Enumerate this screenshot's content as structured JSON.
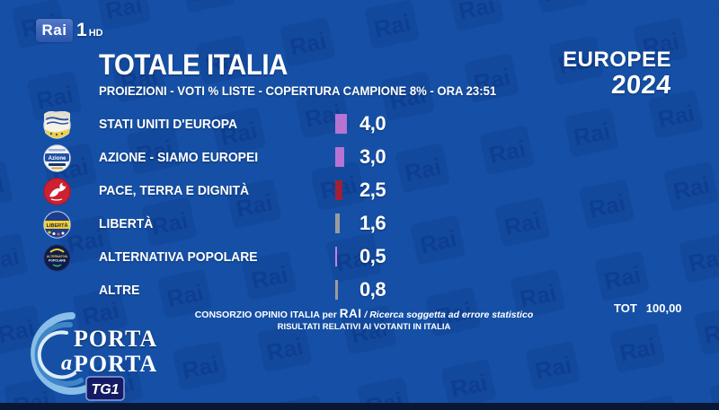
{
  "channel": {
    "rai": "Rai",
    "number": "1",
    "hd": "HD"
  },
  "header": {
    "title": "TOTALE ITALIA",
    "subtitle": "PROIEZIONI - VOTI % LISTE - COPERTURA CAMPIONE 8% - ORA 23:51",
    "event_line1": "EUROPEE",
    "event_line2": "2024"
  },
  "chart_data": {
    "type": "bar",
    "orientation": "horizontal",
    "title": "TOTALE ITALIA",
    "subtitle": "PROIEZIONI - VOTI % LISTE - COPERTURA CAMPIONE 8% - ORA 23:51",
    "unit": "%",
    "categories": [
      "STATI UNITI D'EUROPA",
      "AZIONE - SIAMO EUROPEI",
      "PACE, TERRA E DIGNITÀ",
      "LIBERTÀ",
      "ALTERNATIVA POPOLARE",
      "ALTRE"
    ],
    "values": [
      4.0,
      3.0,
      2.5,
      1.6,
      0.5,
      0.8
    ],
    "value_labels": [
      "4,0",
      "3,0",
      "2,5",
      "1,6",
      "0,5",
      "0,8"
    ],
    "bar_colors": [
      "#b673d2",
      "#b673d2",
      "#a02038",
      "#9c9c9c",
      "#c77fe2",
      "#9c9c9c"
    ],
    "total": 100.0,
    "total_label": "TOT 100,00",
    "legend": "none",
    "grid": false
  },
  "rows": [
    {
      "name": "STATI UNITI D'EUROPA",
      "value": 4.0,
      "label": "4,0",
      "color": "#b673d2",
      "logo": "stati-uniti-europa-logo"
    },
    {
      "name": "AZIONE - SIAMO EUROPEI",
      "value": 3.0,
      "label": "3,0",
      "color": "#b673d2",
      "logo": "azione-siamo-europei-logo"
    },
    {
      "name": "PACE, TERRA E DIGNITÀ",
      "value": 2.5,
      "label": "2,5",
      "color": "#a02038",
      "logo": "pace-terra-dignita-logo"
    },
    {
      "name": "LIBERTÀ",
      "value": 1.6,
      "label": "1,6",
      "color": "#9c9c9c",
      "logo": "liberta-logo"
    },
    {
      "name": "ALTERNATIVA POPOLARE",
      "value": 0.5,
      "label": "0,5",
      "color": "#c77fe2",
      "logo": "alternativa-popolare-logo"
    },
    {
      "name": "ALTRE",
      "value": 0.8,
      "label": "0,8",
      "color": "#9c9c9c",
      "logo": null
    }
  ],
  "footer": {
    "line1_prefix": "CONSORZIO OPINIO ITALIA per",
    "line1_rai": "RAI",
    "line1_suffix": "/ Ricerca soggetta ad errore statistico",
    "line2": "RISULTATI RELATIVI AI VOTANTI IN ITALIA",
    "tot_label": "TOT",
    "tot_value": "100,00"
  },
  "branding": {
    "porta_line1": "PORTA",
    "porta_a": "a",
    "porta_line2": "PORTA",
    "tg1": "TG1"
  },
  "colors": {
    "background": "#1550a6",
    "watermark": "#0f418f",
    "text": "#ffffff",
    "bar_purple": "#b673d2",
    "bar_crimson": "#a02038",
    "bar_gray": "#9c9c9c",
    "bar_violet": "#c77fe2"
  }
}
